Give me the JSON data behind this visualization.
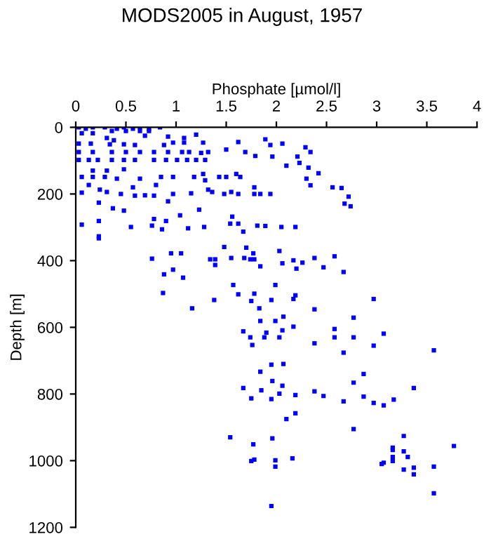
{
  "chart_data": {
    "type": "scatter",
    "title": "MODS2005 in August, 1957",
    "xlabel": "Phosphate [µmol/l]",
    "ylabel": "Depth [m]",
    "xlim": [
      0,
      4
    ],
    "xticks": [
      0,
      0.5,
      1,
      1.5,
      2,
      2.5,
      3,
      3.5,
      4
    ],
    "ylim": [
      1200,
      0
    ],
    "yticks": [
      0,
      200,
      400,
      600,
      800,
      1000,
      1200
    ],
    "grid": false,
    "marker": "square",
    "series": [
      {
        "color": "#0000ff",
        "x": [
          0.03,
          0.1,
          0.17,
          0.29,
          0.41,
          0.48,
          0.57,
          0.64,
          0.73,
          0.84,
          0.06,
          0.17,
          0.36,
          0.5,
          0.64,
          0.73,
          0.92,
          1.08,
          1.2,
          1.27,
          0.97,
          1.08,
          0.88,
          0.69,
          0.31,
          0.34,
          0.48,
          0.59,
          0.38,
          0.03,
          0.15,
          1.62,
          1.89,
          1.94,
          2.06,
          1.96,
          1.79,
          1.69,
          2.21,
          2.29,
          2.34,
          2.1,
          2.23,
          2.32,
          2.42,
          2.3,
          2.34,
          2.56,
          2.65,
          2.72,
          2.68,
          2.74,
          0.03,
          0.13,
          0.22,
          0.36,
          0.48,
          0.59,
          0.78,
          0.9,
          1.01,
          1.11,
          1.2,
          1.29,
          0.03,
          0.17,
          0.36,
          0.5,
          0.64,
          0.78,
          0.92,
          1.06,
          1.13,
          1.25,
          1.32,
          1.5,
          0.17,
          0.31,
          0.48,
          0.06,
          0.17,
          0.29,
          0.41,
          0.64,
          0.85,
          0.97,
          1.18,
          1.27,
          1.29,
          1.43,
          1.5,
          1.6,
          1.64,
          0.13,
          0.24,
          0.31,
          0.45,
          0.57,
          0.59,
          0.8,
          0.78,
          0.69,
          0.97,
          1.15,
          1.32,
          1.36,
          1.48,
          1.55,
          1.62,
          1.78,
          1.78,
          1.84,
          1.94,
          0.06,
          0.23,
          0.37,
          0.48,
          0.92,
          1.23,
          0.78,
          0.9,
          1.04,
          1.56,
          0.23,
          0.06,
          0.55,
          0.76,
          0.86,
          1.12,
          1.28,
          1.54,
          1.62,
          1.67,
          1.81,
          1.89,
          2.05,
          2.19,
          0.23,
          0.23,
          1.48,
          1.7,
          1.77,
          2.03,
          0.95,
          1.05,
          0.76,
          1.34,
          1.39,
          1.55,
          1.68,
          1.74,
          1.78,
          1.84,
          2.06,
          2.17,
          2.2,
          2.26,
          2.38,
          2.47,
          2.58,
          2.67,
          0.97,
          0.88,
          1.07,
          1.39,
          1.57,
          1.99,
          0.87,
          1.38,
          1.62,
          1.78,
          1.75,
          1.95,
          2.17,
          2.19,
          2.97,
          1.16,
          1.83,
          2.38,
          2.77,
          2.07,
          1.84,
          1.99,
          2.17,
          1.67,
          1.9,
          2.06,
          2.58,
          3.07,
          1.74,
          1.88,
          2.03,
          2.58,
          2.77,
          1.76,
          2.38,
          2.97,
          2.67,
          3.57,
          1.95,
          2.07,
          1.84,
          2.87,
          1.96,
          2.06,
          2.77,
          1.67,
          1.85,
          2.03,
          2.19,
          2.38,
          2.47,
          2.87,
          3.37,
          1.75,
          1.95,
          2.67,
          2.97,
          3.07,
          3.17,
          2.1,
          2.19,
          2.77,
          1.54,
          1.96,
          1.77,
          3.27,
          3.16,
          3.16,
          3.27,
          3.77,
          3.16,
          3.31,
          2.16,
          1.99,
          1.75,
          1.78,
          3.16,
          3.07,
          3.05,
          1.99,
          3.27,
          3.37,
          3.57,
          3.37,
          3.57,
          1.95
        ],
        "values": [
          0,
          4,
          0,
          0,
          4,
          0,
          4,
          0,
          4,
          0,
          18,
          18,
          11,
          11,
          11,
          11,
          28,
          32,
          22,
          46,
          46,
          46,
          53,
          25,
          32,
          51,
          51,
          53,
          39,
          49,
          49,
          44,
          36,
          53,
          49,
          88,
          86,
          74,
          88,
          60,
          74,
          115,
          107,
          121,
          138,
          154,
          174,
          180,
          182,
          208,
          229,
          237,
          98,
          98,
          98,
          98,
          98,
          98,
          98,
          98,
          98,
          98,
          98,
          98,
          74,
          74,
          74,
          74,
          74,
          74,
          74,
          74,
          74,
          77,
          74,
          67,
          130,
          130,
          126,
          149,
          149,
          149,
          154,
          154,
          149,
          149,
          149,
          140,
          159,
          149,
          149,
          140,
          149,
          173,
          187,
          194,
          200,
          180,
          205,
          173,
          205,
          204,
          200,
          198,
          187,
          194,
          200,
          194,
          200,
          180,
          200,
          200,
          200,
          196,
          226,
          243,
          250,
          222,
          247,
          275,
          281,
          264,
          268,
          281,
          292,
          299,
          295,
          306,
          303,
          299,
          289,
          289,
          313,
          295,
          296,
          299,
          299,
          327,
          333,
          359,
          361,
          378,
          371,
          378,
          378,
          394,
          396,
          396,
          392,
          392,
          396,
          396,
          417,
          408,
          399,
          424,
          406,
          392,
          420,
          387,
          434,
          427,
          441,
          451,
          413,
          473,
          473,
          497,
          518,
          501,
          499,
          521,
          518,
          515,
          504,
          515,
          543,
          543,
          546,
          571,
          568,
          581,
          581,
          598,
          612,
          616,
          609,
          605,
          619,
          630,
          630,
          630,
          630,
          630,
          653,
          648,
          655,
          676,
          669,
          712,
          710,
          733,
          740,
          761,
          775,
          766,
          782,
          789,
          799,
          803,
          792,
          806,
          808,
          782,
          813,
          815,
          822,
          827,
          834,
          817,
          875,
          858,
          905,
          930,
          933,
          951,
          926,
          961,
          968,
          972,
          956,
          989,
          989,
          993,
          999,
          1001,
          997,
          1001,
          1006,
          1010,
          1018,
          1027,
          1021,
          1018,
          1041,
          1098,
          1136
        ]
      }
    ]
  }
}
